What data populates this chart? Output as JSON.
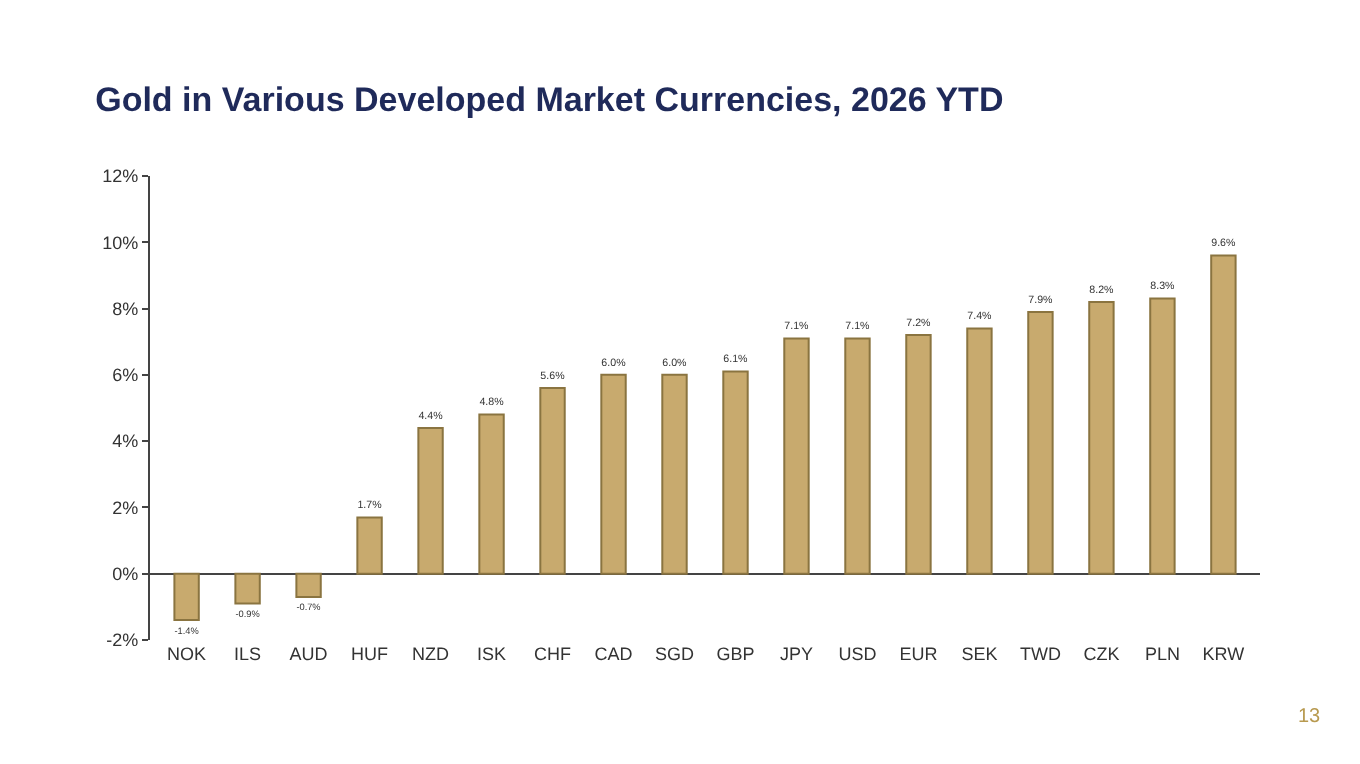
{
  "chart_data": {
    "type": "bar",
    "title": "Gold in Various Developed Market Currencies, 2026 YTD",
    "categories": [
      "NOK",
      "ILS",
      "AUD",
      "HUF",
      "NZD",
      "ISK",
      "CHF",
      "CAD",
      "SGD",
      "GBP",
      "JPY",
      "USD",
      "EUR",
      "SEK",
      "TWD",
      "CZK",
      "PLN",
      "KRW"
    ],
    "values": [
      -1.4,
      -0.9,
      -0.7,
      1.7,
      4.4,
      4.8,
      5.6,
      6.0,
      6.0,
      6.1,
      7.1,
      7.1,
      7.2,
      7.4,
      7.9,
      8.2,
      8.3,
      9.6
    ],
    "value_labels": [
      "-1.4%",
      "-0.9%",
      "-0.7%",
      "1.7%",
      "4.4%",
      "4.8%",
      "5.6%",
      "6.0%",
      "6.0%",
      "6.1%",
      "7.1%",
      "7.1%",
      "7.2%",
      "7.4%",
      "7.9%",
      "8.2%",
      "8.3%",
      "9.6%"
    ],
    "color": "#c8aa6e",
    "ylim": [
      -2,
      12
    ],
    "yticks": [
      {
        "value": -2,
        "label": "-2%"
      },
      {
        "value": 0,
        "label": "0%"
      },
      {
        "value": 2,
        "label": "2%"
      },
      {
        "value": 4,
        "label": "4%"
      },
      {
        "value": 6,
        "label": "6%"
      },
      {
        "value": 8,
        "label": "8%"
      },
      {
        "value": 10,
        "label": "10%"
      },
      {
        "value": 12,
        "label": "12%"
      }
    ],
    "legend": false,
    "annotations": [
      "13"
    ]
  }
}
